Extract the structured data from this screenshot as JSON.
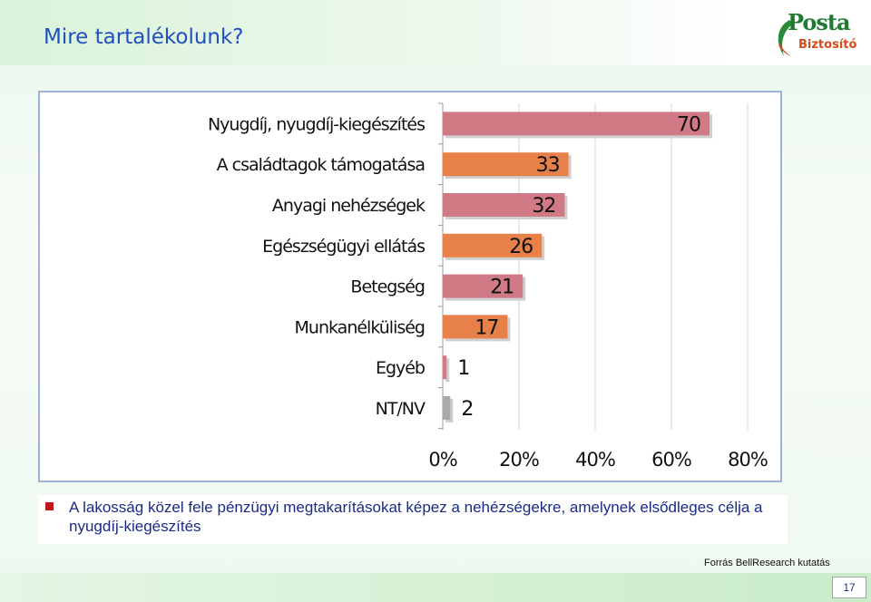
{
  "slide": {
    "title": "Mire tartalékolunk?",
    "logo_primary": "Posta",
    "logo_secondary": "Biztosító",
    "bullet": "A lakosság közel fele pénzügyi megtakarításokat képez a nehézségekre, amelynek elsődleges célja a nyugdíj-kiegészítés",
    "source": "Forrás BellResearch kutatás",
    "page_number": "17"
  },
  "colors": {
    "pink": "#d07a86",
    "orange": "#e8804a",
    "gray": "#aaaaaa",
    "title_blue": "#1e50c0",
    "bullet_red": "#c01818"
  },
  "chart_data": {
    "type": "bar",
    "orientation": "horizontal",
    "categories": [
      "Nyugdíj, nyugdíj-kiegészítés",
      "A családtagok támogatása",
      "Anyagi nehézségek",
      "Egészségügyi ellátás",
      "Betegség",
      "Munkanélküliség",
      "Egyéb",
      "NT/NV"
    ],
    "values": [
      70,
      33,
      32,
      26,
      21,
      17,
      1,
      2
    ],
    "value_labels": [
      "70",
      "33",
      "32",
      "26",
      "21",
      "17",
      "1",
      "2"
    ],
    "bar_colors": [
      "pink",
      "orange",
      "pink",
      "orange",
      "pink",
      "orange",
      "pink",
      "gray"
    ],
    "x_ticks": [
      "0%",
      "20%",
      "40%",
      "60%",
      "80%"
    ],
    "xlim": [
      0,
      80
    ],
    "grid": "vertical",
    "legend": "none"
  }
}
